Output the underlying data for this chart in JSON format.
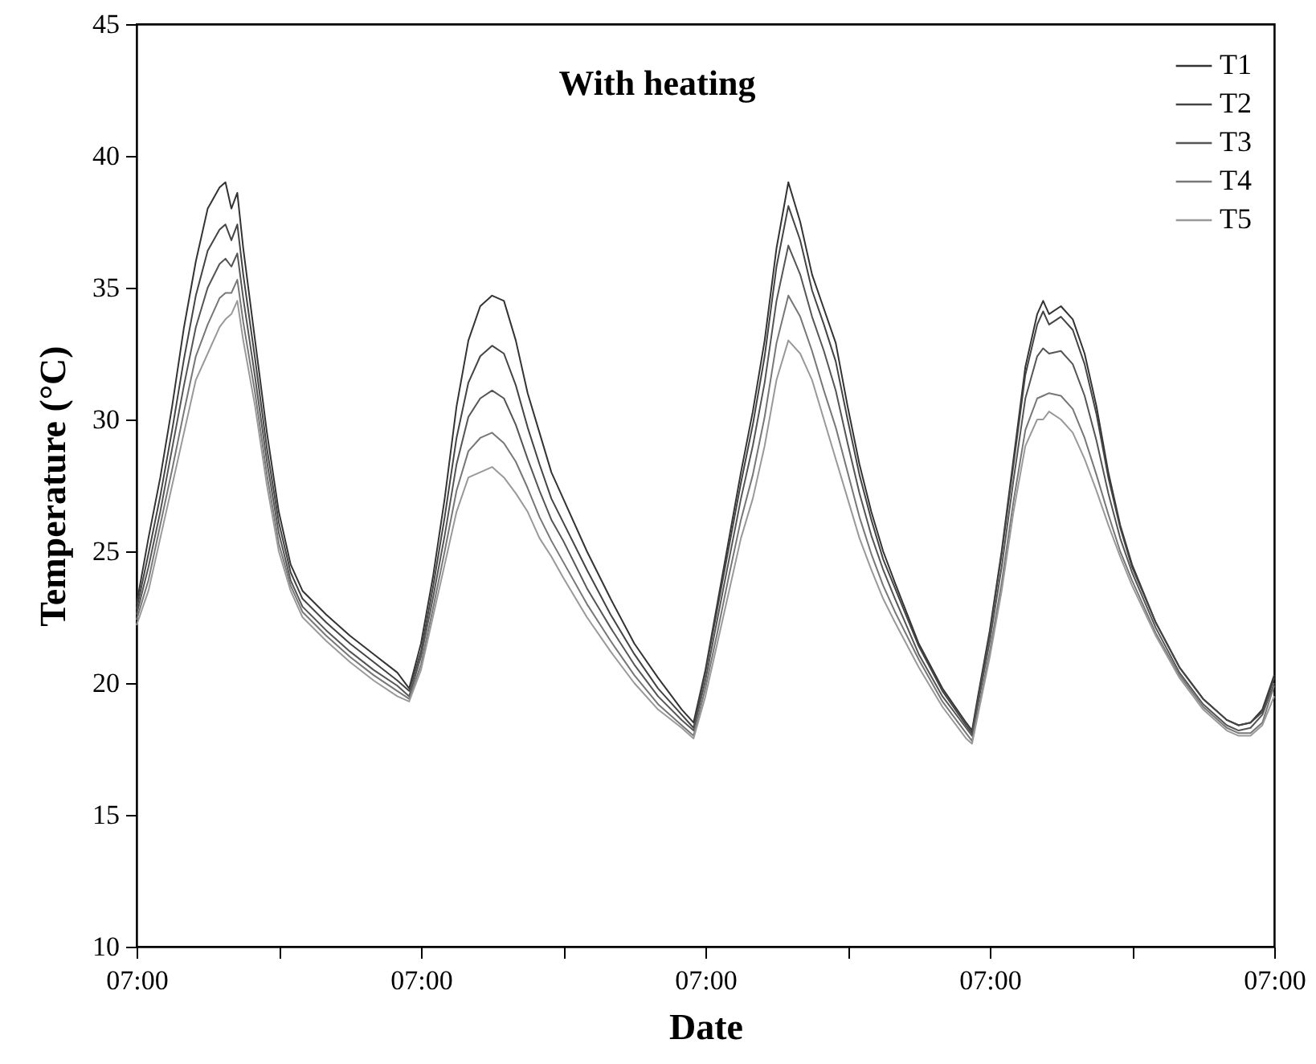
{
  "chart_data": {
    "type": "line",
    "title": "With heating",
    "xlabel": "Date",
    "ylabel": "Temperature (°C)",
    "x": [
      "--01-01T07:00",
      "--01-01T08:00",
      "--01-01T09:00",
      "--01-01T10:00",
      "--01-01T11:00",
      "--01-01T12:00",
      "--01-01T13:00",
      "--01-01T14:00",
      "--01-01T14:30",
      "--01-01T15:00",
      "--01-01T15:30",
      "--01-01T16:00",
      "--01-01T17:00",
      "--01-01T18:00",
      "--01-01T19:00",
      "--01-01T20:00",
      "--01-01T21:00",
      "--01-01T23:00",
      "--01-02T01:00",
      "--01-02T03:00",
      "--01-02T05:00",
      "--01-02T06:00",
      "--01-02T07:00",
      "--01-02T08:00",
      "--01-02T09:00",
      "--01-02T10:00",
      "--01-02T11:00",
      "--01-02T12:00",
      "--01-02T13:00",
      "--01-02T14:00",
      "--01-02T15:00",
      "--01-02T16:00",
      "--01-02T17:00",
      "--01-02T18:00",
      "--01-02T19:00",
      "--01-02T21:00",
      "--01-02T23:00",
      "--01-03T01:00",
      "--01-03T03:00",
      "--01-03T05:00",
      "--01-03T06:00",
      "--01-03T07:00",
      "--01-03T08:00",
      "--01-03T09:00",
      "--01-03T10:00",
      "--01-03T11:00",
      "--01-03T12:00",
      "--01-03T13:00",
      "--01-03T14:00",
      "--01-03T15:00",
      "--01-03T16:00",
      "--01-03T17:00",
      "--01-03T18:00",
      "--01-03T19:00",
      "--01-03T20:00",
      "--01-03T21:00",
      "--01-03T22:00",
      "--01-03T23:00",
      "--01-04T01:00",
      "--01-04T03:00",
      "--01-04T05:00",
      "--01-04T05:30",
      "--01-04T06:00",
      "--01-04T07:00",
      "--01-04T08:00",
      "--01-04T09:00",
      "--01-04T10:00",
      "--01-04T11:00",
      "--01-04T11:30",
      "--01-04T12:00",
      "--01-04T13:00",
      "--01-04T14:00",
      "--01-04T15:00",
      "--01-04T16:00",
      "--01-04T17:00",
      "--01-04T18:00",
      "--01-04T19:00",
      "--01-04T21:00",
      "--01-04T23:00",
      "--01-05T01:00",
      "--01-05T03:00",
      "--01-05T04:00",
      "--01-05T05:00",
      "--01-05T06:00",
      "--01-05T07:00"
    ],
    "xlim": [
      "--01-01T07:00",
      "--01-05T07:00"
    ],
    "xticks": [
      {
        "value": "--01-01T07:00",
        "label": "07:00"
      },
      {
        "value": "--01-01T19:00",
        "label": null
      },
      {
        "value": "--01-02T07:00",
        "label": "07:00"
      },
      {
        "value": "--01-02T19:00",
        "label": null
      },
      {
        "value": "--01-03T07:00",
        "label": "07:00"
      },
      {
        "value": "--01-03T19:00",
        "label": null
      },
      {
        "value": "--01-04T07:00",
        "label": "07:00"
      },
      {
        "value": "--01-04T19:00",
        "label": null
      },
      {
        "value": "--01-05T07:00",
        "label": "07:00"
      }
    ],
    "ylim": [
      10,
      45
    ],
    "yticks": [
      10,
      15,
      20,
      25,
      30,
      35,
      40,
      45
    ],
    "grid": false,
    "legend": "top right",
    "line_style": "solid",
    "series": [
      {
        "name": "T1",
        "color": "#333333",
        "values": [
          23,
          25.5,
          27.8,
          30.5,
          33.5,
          36,
          38,
          38.8,
          39,
          38,
          38.6,
          36.5,
          33,
          29.5,
          26.5,
          24.5,
          23.5,
          22.6,
          21.8,
          21.1,
          20.4,
          19.8,
          21.5,
          24,
          27,
          30.5,
          33,
          34.3,
          34.7,
          34.5,
          33,
          31,
          29.5,
          28,
          27,
          25,
          23.2,
          21.5,
          20.2,
          19,
          18.5,
          20.5,
          23,
          25.5,
          28,
          30.3,
          33,
          36.5,
          39,
          37.5,
          35.5,
          34.2,
          32.9,
          30.5,
          28.3,
          26.5,
          25,
          23.8,
          21.5,
          19.8,
          18.5,
          18.2,
          19.5,
          22,
          25,
          28.5,
          32,
          34,
          34.5,
          34,
          34.3,
          33.8,
          32.5,
          30.5,
          28,
          26,
          24.5,
          22.3,
          20.6,
          19.4,
          18.6,
          18.4,
          18.5,
          19,
          20.3
        ]
      },
      {
        "name": "T2",
        "color": "#444444",
        "values": [
          22.8,
          24.9,
          27.1,
          29.6,
          32.3,
          34.7,
          36.4,
          37.2,
          37.4,
          36.8,
          37.4,
          35.5,
          32.3,
          28.9,
          26.1,
          24.2,
          23.2,
          22.3,
          21.5,
          20.8,
          20.1,
          19.7,
          21.2,
          23.6,
          26.3,
          29.3,
          31.4,
          32.4,
          32.8,
          32.5,
          31.3,
          29.7,
          28.3,
          27,
          26.1,
          24.3,
          22.6,
          21.1,
          19.8,
          18.8,
          18.3,
          20.4,
          22.8,
          25.2,
          27.6,
          29.8,
          32.4,
          35.8,
          38.1,
          36.8,
          34.9,
          33.6,
          32.2,
          30,
          27.9,
          26.2,
          24.7,
          23.6,
          21.4,
          19.7,
          18.4,
          18.1,
          19.4,
          21.9,
          24.9,
          28.3,
          31.7,
          33.6,
          34.1,
          33.6,
          33.9,
          33.4,
          32.1,
          30.2,
          27.8,
          25.9,
          24.4,
          22.3,
          20.6,
          19.4,
          18.6,
          18.4,
          18.5,
          18.9,
          20.2
        ]
      },
      {
        "name": "T3",
        "color": "#555555",
        "values": [
          22.6,
          24.4,
          26.5,
          28.9,
          31.3,
          33.5,
          35,
          35.9,
          36.1,
          35.8,
          36.3,
          34.6,
          31.6,
          28.4,
          25.7,
          23.9,
          22.9,
          22,
          21.2,
          20.5,
          19.9,
          19.5,
          21,
          23.2,
          25.6,
          28.3,
          30.1,
          30.8,
          31.1,
          30.8,
          29.8,
          28.5,
          27.3,
          26.2,
          25.4,
          23.6,
          22.1,
          20.7,
          19.5,
          18.6,
          18.2,
          20.1,
          22.4,
          24.7,
          27,
          29,
          31.4,
          34.5,
          36.6,
          35.5,
          33.9,
          32.6,
          31.1,
          29.1,
          27.2,
          25.6,
          24.3,
          23.2,
          21.1,
          19.5,
          18.3,
          18,
          19.2,
          21.6,
          24.4,
          27.7,
          30.8,
          32.4,
          32.7,
          32.5,
          32.6,
          32.1,
          30.9,
          29.2,
          27.2,
          25.5,
          24.2,
          22.1,
          20.4,
          19.2,
          18.4,
          18.2,
          18.3,
          18.8,
          20
        ]
      },
      {
        "name": "T4",
        "color": "#777777",
        "values": [
          22.4,
          23.9,
          26,
          28.1,
          30.3,
          32.4,
          33.6,
          34.6,
          34.8,
          34.8,
          35.3,
          33.7,
          31,
          27.9,
          25.3,
          23.7,
          22.7,
          21.8,
          21,
          20.3,
          19.7,
          19.4,
          20.7,
          22.8,
          25,
          27.3,
          28.8,
          29.3,
          29.5,
          29.1,
          28.4,
          27.4,
          26.3,
          25.4,
          24.6,
          23,
          21.6,
          20.3,
          19.2,
          18.4,
          18,
          19.8,
          21.9,
          24.1,
          26.2,
          27.9,
          30.1,
          32.9,
          34.7,
          33.9,
          32.6,
          31.1,
          29.7,
          28,
          26.3,
          24.9,
          23.7,
          22.7,
          20.9,
          19.3,
          18.1,
          17.8,
          18.9,
          21.2,
          23.8,
          26.9,
          29.6,
          30.8,
          30.9,
          31,
          30.9,
          30.4,
          29.3,
          27.9,
          26.4,
          25,
          23.9,
          21.9,
          20.3,
          19.1,
          18.3,
          18.1,
          18.1,
          18.5,
          19.9
        ]
      },
      {
        "name": "T5",
        "color": "#999999",
        "values": [
          22.2,
          23.5,
          25.5,
          27.5,
          29.5,
          31.5,
          32.5,
          33.5,
          33.8,
          34,
          34.5,
          33,
          30.5,
          27.5,
          25,
          23.5,
          22.5,
          21.6,
          20.8,
          20.1,
          19.5,
          19.3,
          20.5,
          22.5,
          24.5,
          26.5,
          27.8,
          28,
          28.2,
          27.8,
          27.2,
          26.5,
          25.5,
          24.8,
          24,
          22.5,
          21.2,
          20,
          19,
          18.3,
          17.9,
          19.5,
          21.5,
          23.5,
          25.5,
          27,
          29,
          31.5,
          33,
          32.5,
          31.5,
          30,
          28.5,
          27,
          25.5,
          24.3,
          23.2,
          22.3,
          20.6,
          19.1,
          17.9,
          17.7,
          18.8,
          21,
          23.5,
          26.5,
          29,
          30,
          30,
          30.3,
          30,
          29.5,
          28.5,
          27.3,
          26,
          24.8,
          23.7,
          21.8,
          20.2,
          19,
          18.2,
          18,
          18,
          18.4,
          19.5
        ]
      }
    ]
  }
}
